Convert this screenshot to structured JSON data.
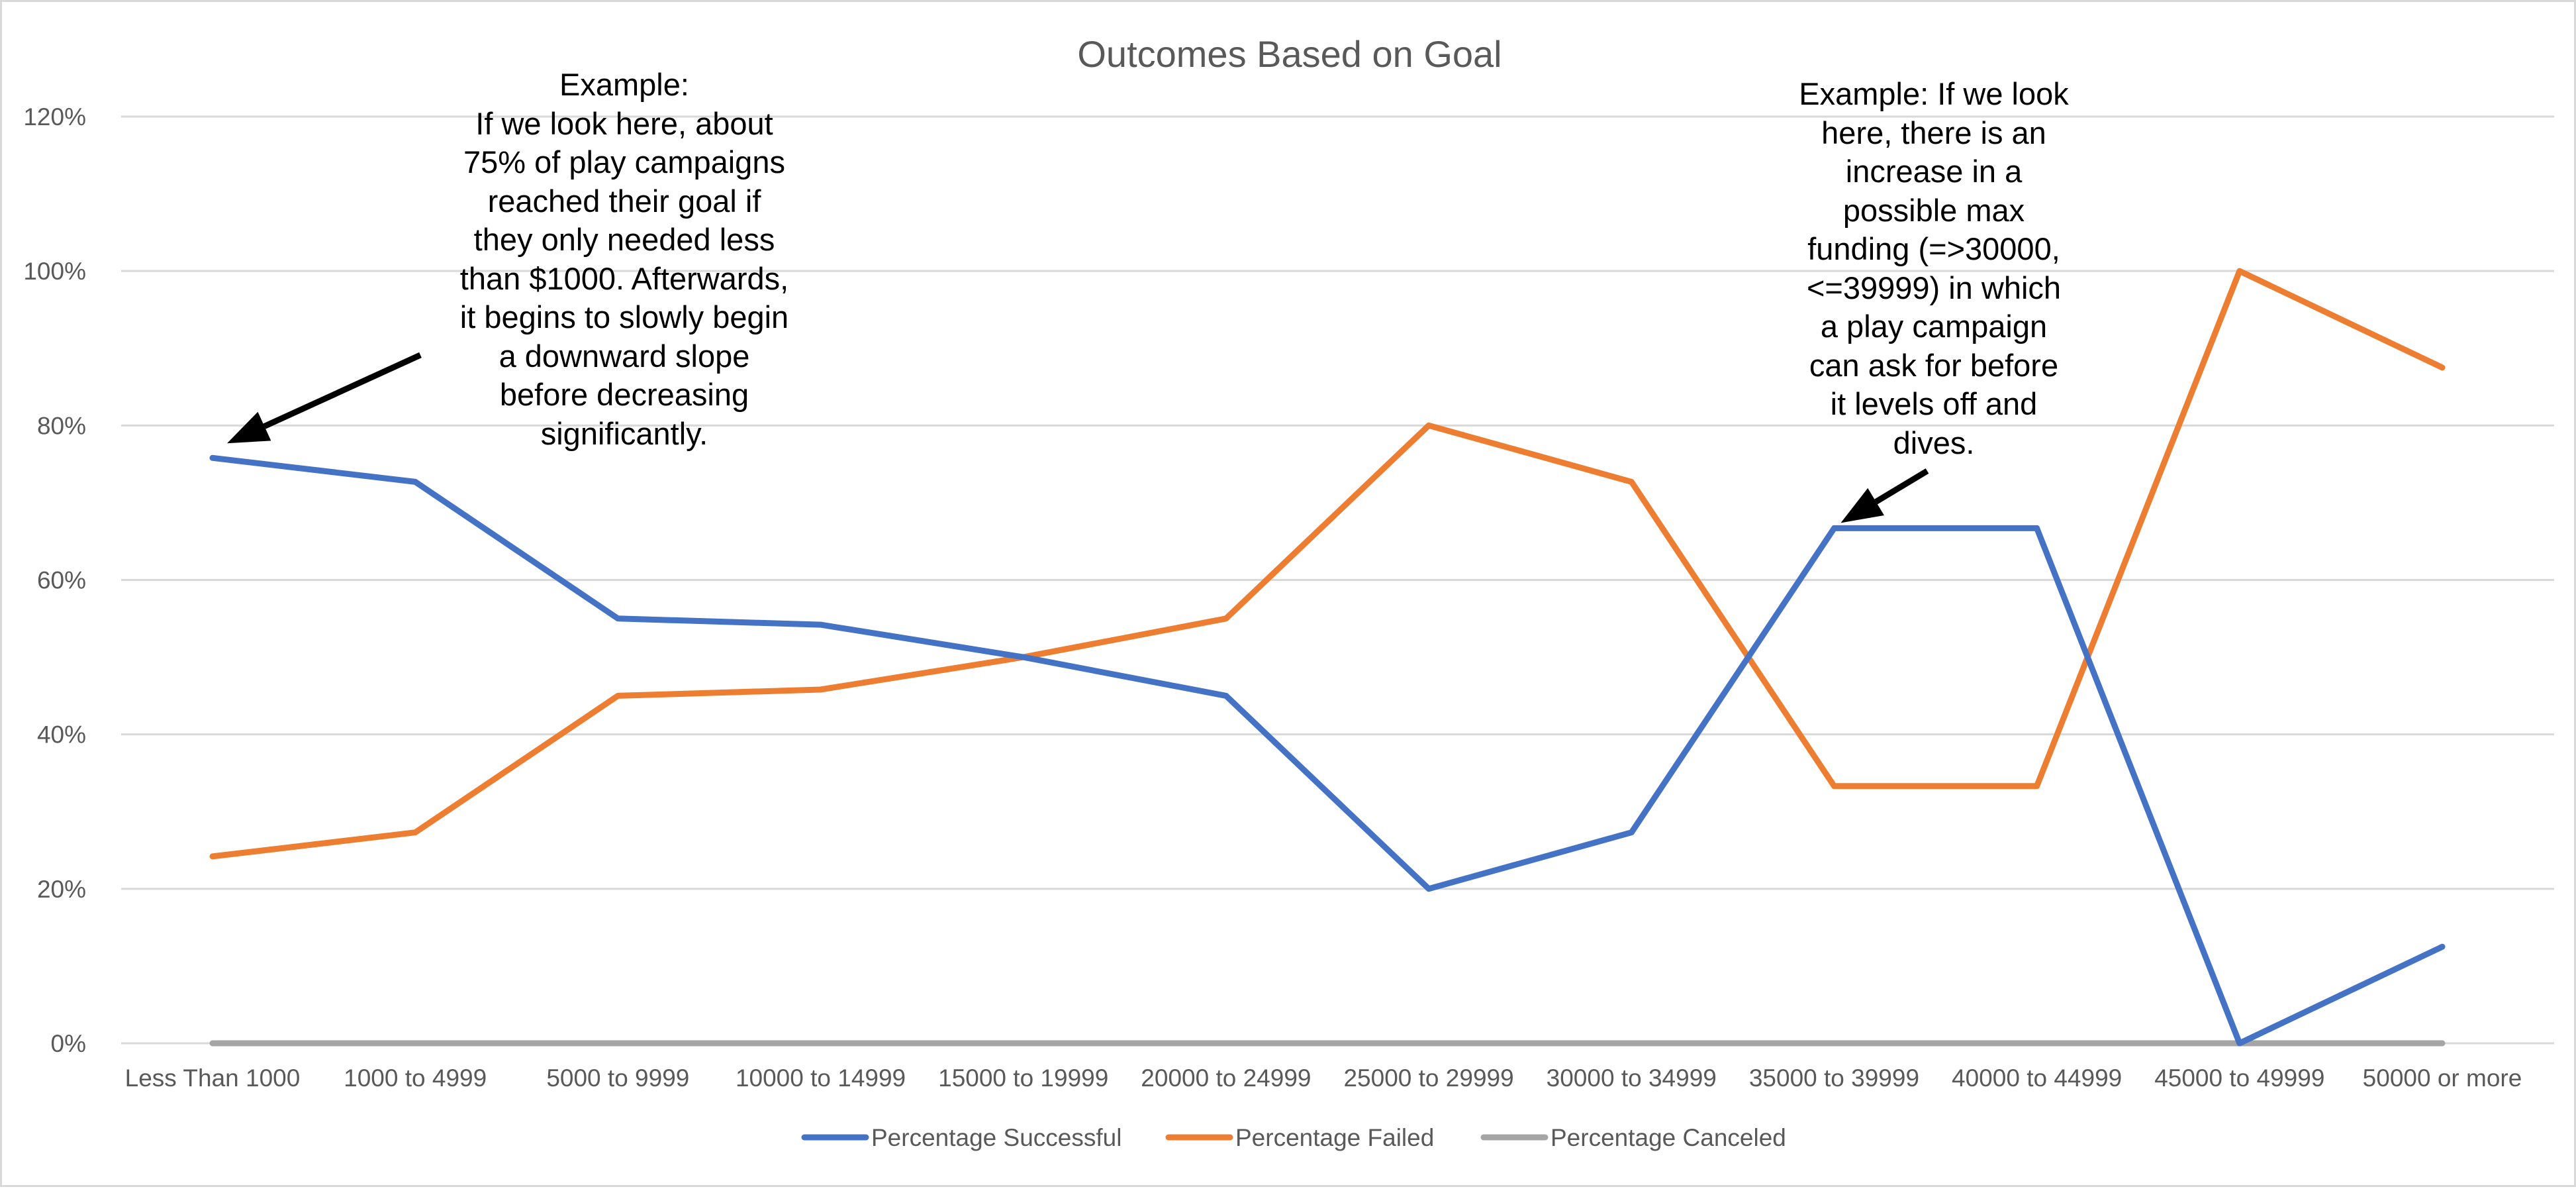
{
  "chart_data": {
    "type": "line",
    "title": "Outcomes Based on Goal",
    "xlabel": "",
    "ylabel": "",
    "categories": [
      "Less Than 1000",
      "1000 to 4999",
      "5000 to 9999",
      "10000 to 14999",
      "15000 to 19999",
      "20000 to 24999",
      "25000 to 29999",
      "30000 to 34999",
      "35000 to 39999",
      "40000 to 44999",
      "45000 to 49999",
      "50000 or more"
    ],
    "series": [
      {
        "name": "Percentage Successful",
        "color": "#4472c4",
        "values": [
          0.758,
          0.727,
          0.55,
          0.542,
          0.5,
          0.45,
          0.2,
          0.273,
          0.667,
          0.667,
          0.0,
          0.125
        ]
      },
      {
        "name": "Percentage Failed",
        "color": "#ed7d31",
        "values": [
          0.242,
          0.273,
          0.45,
          0.458,
          0.5,
          0.55,
          0.8,
          0.727,
          0.333,
          0.333,
          1.0,
          0.875
        ]
      },
      {
        "name": "Percentage Canceled",
        "color": "#a5a5a5",
        "values": [
          0,
          0,
          0,
          0,
          0,
          0,
          0,
          0,
          0,
          0,
          0,
          0
        ]
      }
    ],
    "ylim": [
      0,
      1.2
    ],
    "yticks": [
      0,
      0.2,
      0.4,
      0.6,
      0.8,
      1.0,
      1.2
    ],
    "ytick_labels": [
      "0%",
      "20%",
      "40%",
      "60%",
      "80%",
      "100%",
      "120%"
    ],
    "grid": true,
    "legend_position": "bottom",
    "annotations": [
      {
        "text": "Example:\nIf we look here, about\n75% of play campaigns\nreached their goal if\nthey only needed less\nthan $1000. Afterwards,\nit begins to slowly begin\na downward slope\nbefore decreasing\nsignificantly.",
        "category": "Less Than 1000",
        "value": 0.758
      },
      {
        "text": "Example: If we look\nhere, there is an\nincrease in a\npossible max\nfunding (=>30000,\n<=39999) in which\na play campaign\ncan  ask for before\nit levels off and\ndives.",
        "category": "35000 to 39999",
        "value": 0.667
      }
    ]
  }
}
